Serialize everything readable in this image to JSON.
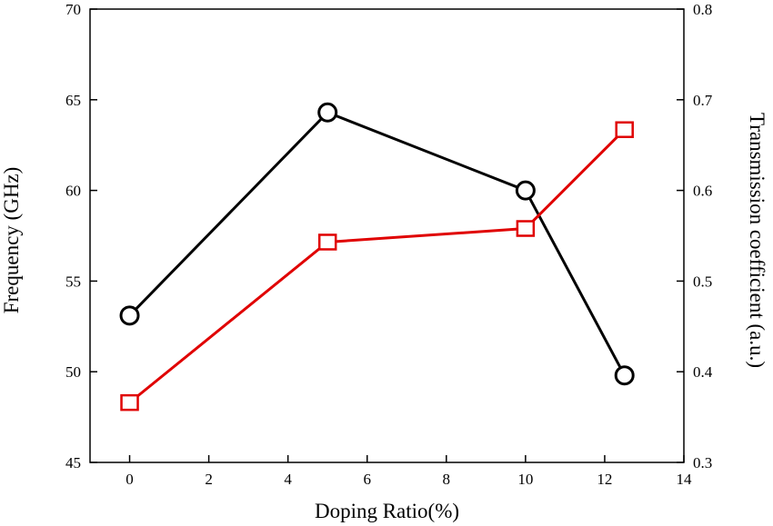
{
  "chart_data": {
    "type": "line",
    "title": "",
    "xlabel": "Doping Ratio(%)",
    "ylabel": "Frequency (GHz)",
    "y2label": "Transmission coefficient (a.u.)",
    "xlim": [
      -1,
      14
    ],
    "ylim": [
      45,
      70
    ],
    "y2lim": [
      0.3,
      0.8
    ],
    "xticks": [
      0,
      2,
      4,
      6,
      8,
      10,
      12,
      14
    ],
    "yticks": [
      45,
      50,
      55,
      60,
      65,
      70
    ],
    "y2ticks": [
      "0.3",
      "0.4",
      "0.5",
      "0.6",
      "0.7",
      "0.8"
    ],
    "grid": false,
    "legend": "none",
    "x": [
      0,
      5,
      10,
      12.5
    ],
    "series": [
      {
        "axis": "left",
        "marker": "circle",
        "color": "#000000",
        "values": [
          53.1,
          64.3,
          60.0,
          49.8
        ]
      },
      {
        "axis": "right",
        "marker": "square",
        "color": "#e00000",
        "values": [
          0.366,
          0.543,
          0.558,
          0.667
        ]
      }
    ]
  }
}
